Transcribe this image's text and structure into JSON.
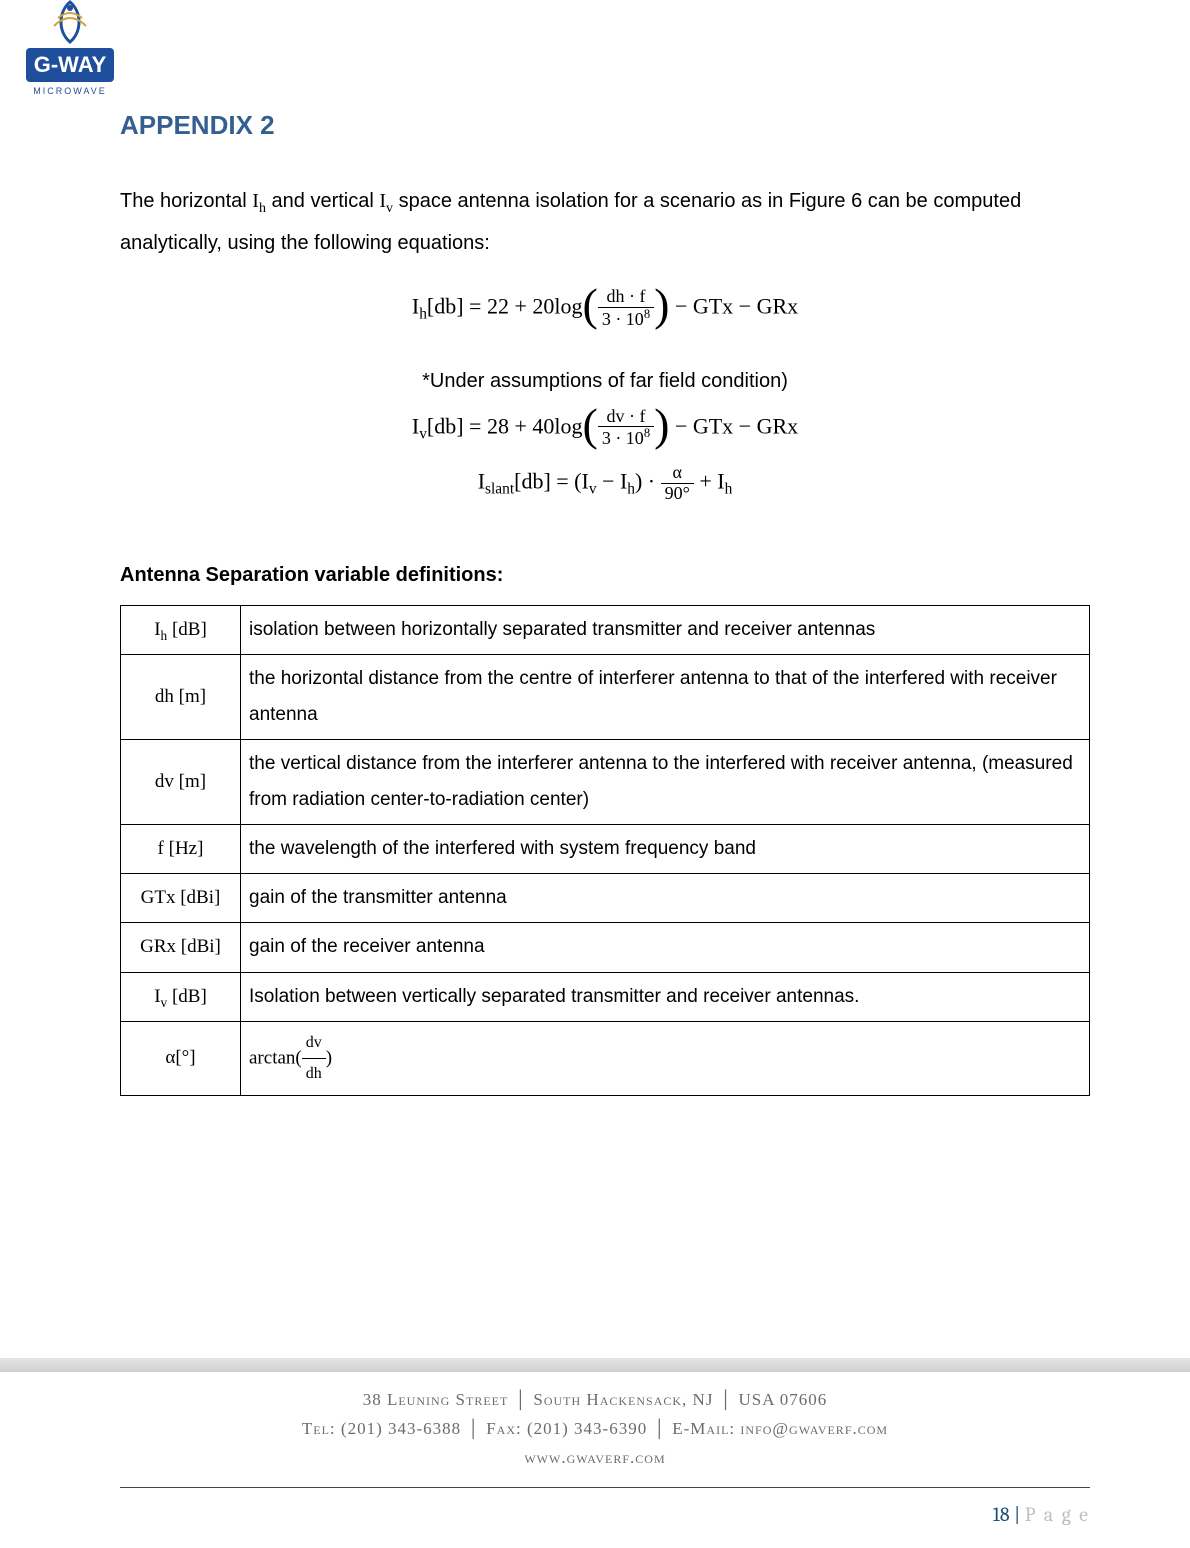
{
  "logo": {
    "top_text": "G-WAY",
    "sub_text": "MICROWAVE",
    "blue": "#1f4e9c",
    "gold": "#d1a33a"
  },
  "title": "APPENDIX 2",
  "title_color": "#365f91",
  "intro_pre": "The horizontal ",
  "intro_ih": "I",
  "intro_ih_sub": "h",
  "intro_mid1": " and vertical ",
  "intro_iv": "I",
  "intro_iv_sub": "v",
  "intro_post": " space antenna isolation for a scenario as in Figure 6 can be computed analytically, using the following equations:",
  "eq1": {
    "lhs": "I",
    "lhs_sub": "h",
    "unit": "[db] = 22 + 20log",
    "num": "dh · f",
    "den_a": "3 · 10",
    "den_exp": "8",
    "tail": " − GTx − GRx"
  },
  "assumption_note": "*Under assumptions of far field condition)",
  "eq2": {
    "lhs": "I",
    "lhs_sub": "v",
    "unit": "[db] = 28 + 40log",
    "num": "dv · f",
    "den_a": "3 · 10",
    "den_exp": "8",
    "tail": " − GTx − GRx"
  },
  "eq3": {
    "lhs": "I",
    "lhs_sub": "slant",
    "head": "[db] = (I",
    "s1": "v",
    "mid1": " − I",
    "s2": "h",
    "mid2": ") · ",
    "num": "α",
    "den": "90°",
    "tail_a": " + I",
    "tail_sub": "h"
  },
  "section_heading": "Antenna Separation variable definitions:",
  "table": {
    "rows": [
      {
        "sym_html": "I<sub>h</sub> [dB]",
        "def": "isolation between horizontally separated transmitter and receiver antennas"
      },
      {
        "sym_html": "dh [m]",
        "def": "the horizontal distance from the centre of interferer antenna to that of the interfered with receiver antenna"
      },
      {
        "sym_html": "dv [m]",
        "def": "the vertical distance from the interferer antenna to the interfered with receiver antenna, (measured from radiation center-to-radiation center)"
      },
      {
        "sym_html": "f [Hz]",
        "def": "the wavelength of the interfered with system frequency band"
      },
      {
        "sym_html": "GTx [dBi]",
        "def": "gain of the transmitter antenna"
      },
      {
        "sym_html": "GRx [dBi]",
        "def": "gain of the receiver antenna"
      },
      {
        "sym_html": "I<sub>v</sub> [dB]",
        "def": "Isolation between vertically separated transmitter and receiver antennas."
      },
      {
        "sym_html": "α[°]",
        "def_html": "arctan(<span class='frac' style='font-size:16px'><span class='num'>dv</span><span class='den'>dh</span></span>)"
      }
    ]
  },
  "footer": {
    "line1_a": "38 Leuning Street",
    "line1_b": "South Hackensack, NJ",
    "line1_c": "USA 07606",
    "line2_a": "Tel: (201) 343-6388",
    "line2_b": "Fax: (201) 343-6390",
    "line2_c": "E-Mail: info@gwaverf.com",
    "line3": "www.gwaverf.com"
  },
  "page_number": "18",
  "page_label": "P a g e"
}
